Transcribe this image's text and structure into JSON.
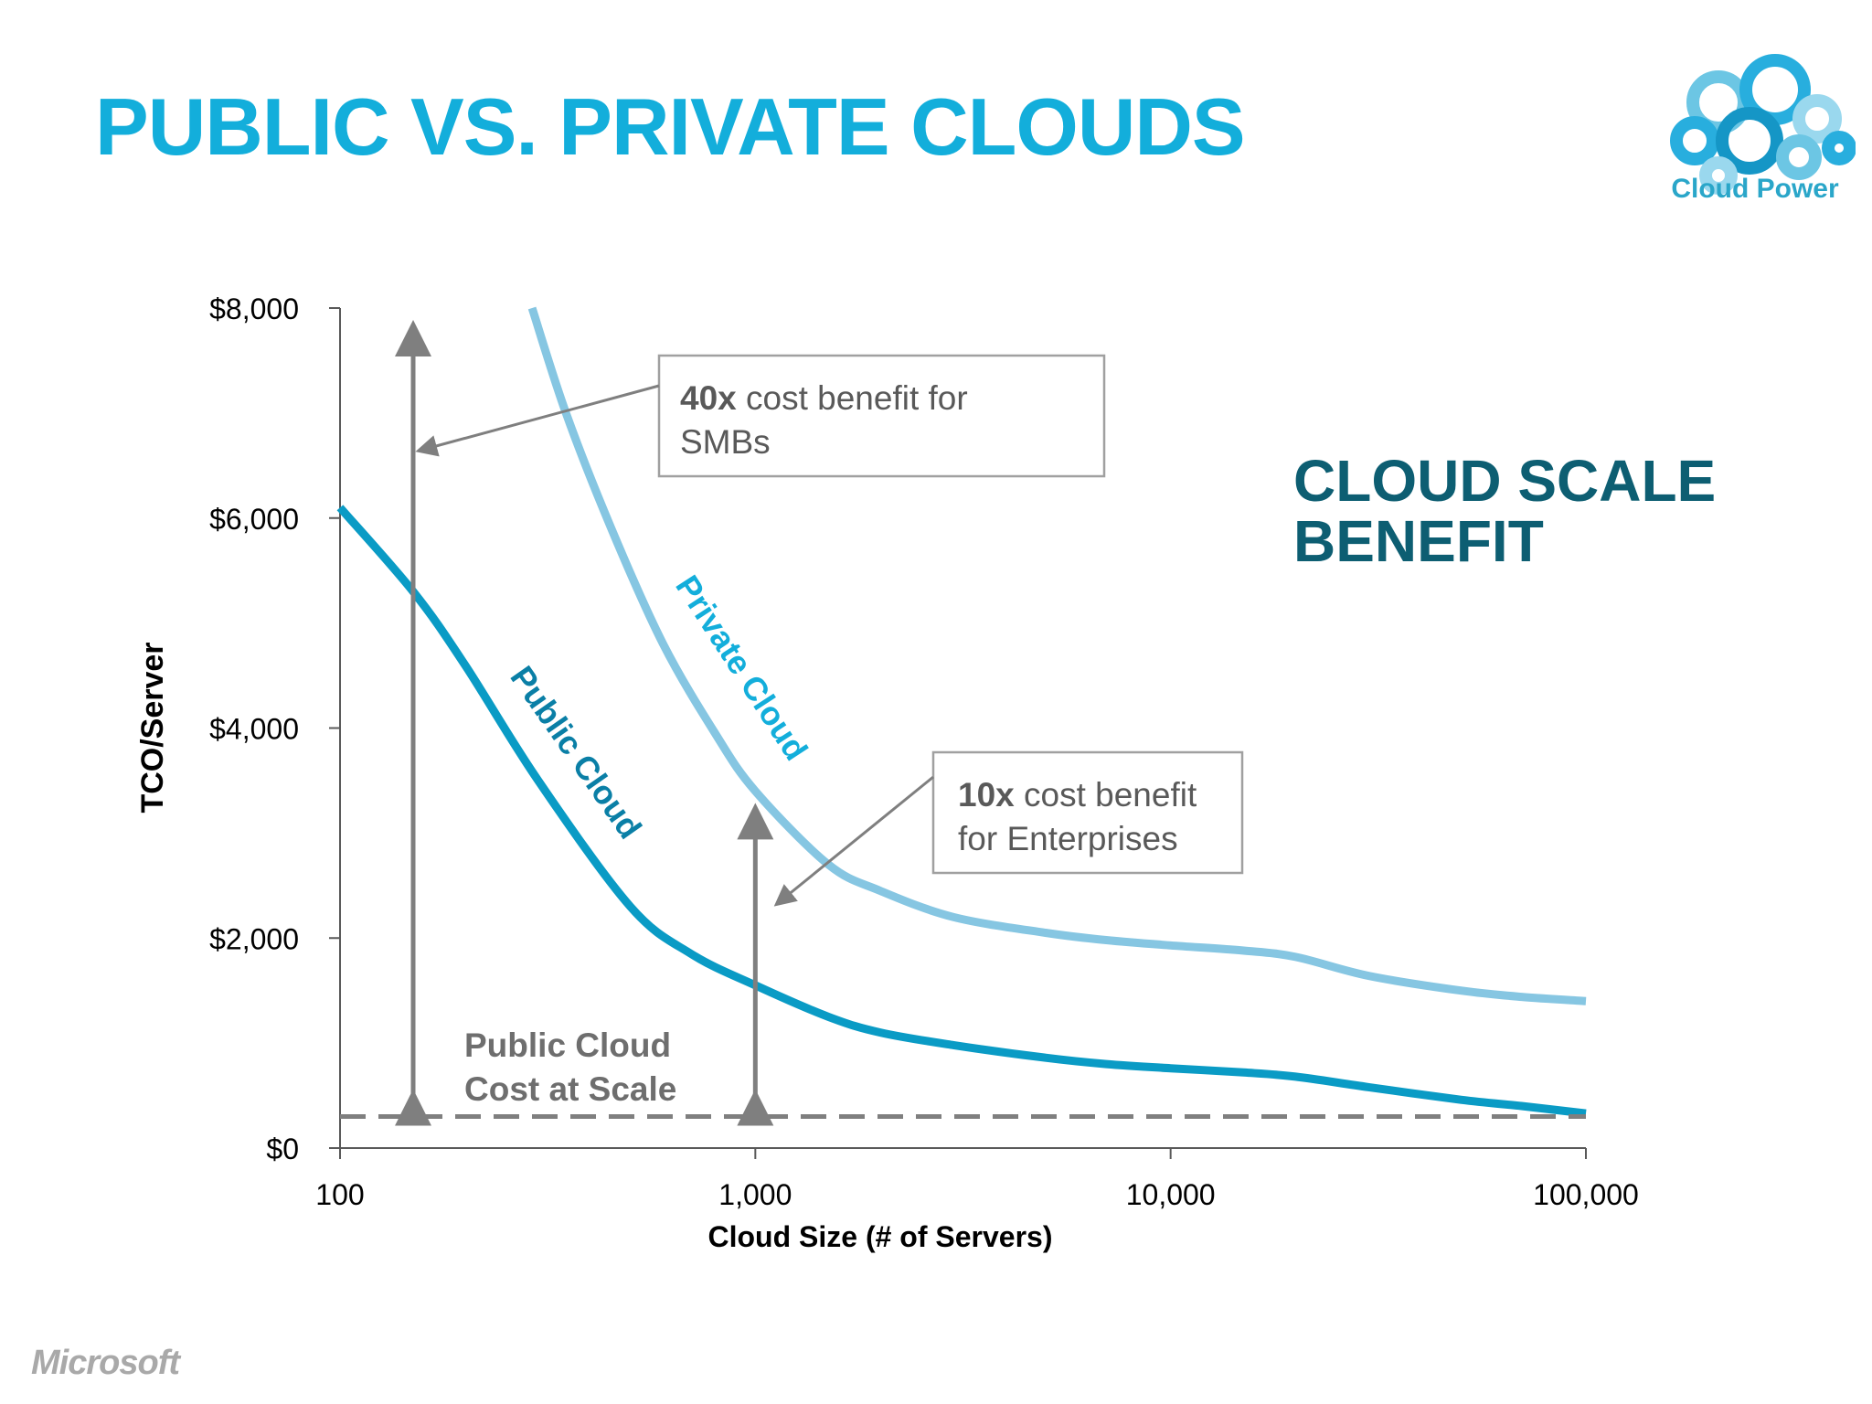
{
  "slide": {
    "title": "PUBLIC VS. PRIVATE CLOUDS",
    "logo_text": "Cloud Power",
    "footer_brand": "Microsoft"
  },
  "colors": {
    "title": "#13aedb",
    "public_cloud": "#0a9bc5",
    "private_cloud": "#86c6e2",
    "benefit_heading": "#0d5e72",
    "annotation_gray": "#7f7f7f",
    "axis": "#595959"
  },
  "chart_data": {
    "type": "line",
    "x_scale": "log",
    "xlabel": "Cloud Size (# of Servers)",
    "ylabel": "TCO/Server",
    "xlim": [
      100,
      100000
    ],
    "ylim": [
      0,
      8000
    ],
    "x_ticks": [
      {
        "value": 100,
        "label": "100"
      },
      {
        "value": 1000,
        "label": "1,000"
      },
      {
        "value": 10000,
        "label": "10,000"
      },
      {
        "value": 100000,
        "label": "100,000"
      }
    ],
    "y_ticks": [
      {
        "value": 0,
        "label": "$0"
      },
      {
        "value": 2000,
        "label": "$2,000"
      },
      {
        "value": 4000,
        "label": "$4,000"
      },
      {
        "value": 6000,
        "label": "$6,000"
      },
      {
        "value": 8000,
        "label": "$8,000"
      }
    ],
    "grid": false,
    "series": [
      {
        "name": "Public Cloud",
        "x": [
          100,
          150,
          200,
          300,
          500,
          700,
          1000,
          1500,
          2000,
          3000,
          5000,
          7000,
          10000,
          15000,
          20000,
          30000,
          50000,
          70000,
          100000
        ],
        "y": [
          6100,
          5300,
          4600,
          3500,
          2300,
          1850,
          1550,
          1250,
          1100,
          980,
          860,
          800,
          760,
          720,
          680,
          580,
          460,
          400,
          330
        ]
      },
      {
        "name": "Private Cloud",
        "x": [
          290,
          350,
          450,
          600,
          800,
          1000,
          1500,
          2000,
          3000,
          5000,
          7000,
          10000,
          15000,
          20000,
          30000,
          50000,
          70000,
          100000
        ],
        "y": [
          8000,
          7000,
          5900,
          4800,
          3950,
          3400,
          2700,
          2450,
          2200,
          2050,
          1980,
          1930,
          1880,
          1820,
          1640,
          1500,
          1440,
          1400
        ]
      }
    ],
    "reference_line": {
      "y": 300,
      "label": "Public Cloud Cost at Scale"
    },
    "annotations": [
      {
        "emphasis": "40x",
        "rest": " cost benefit for",
        "line2": "SMBs",
        "arrow_x": 150,
        "arrow_y_from": 300,
        "arrow_y_to": 7800
      },
      {
        "emphasis": "10x",
        "rest": " cost benefit",
        "line2": "for Enterprises",
        "arrow_x": 1000,
        "arrow_y_from": 300,
        "arrow_y_to": 3200
      }
    ],
    "side_heading": {
      "line1": "CLOUD SCALE",
      "line2": "BENEFIT"
    },
    "curve_labels": {
      "public": "Public Cloud",
      "private": "Private Cloud"
    }
  }
}
